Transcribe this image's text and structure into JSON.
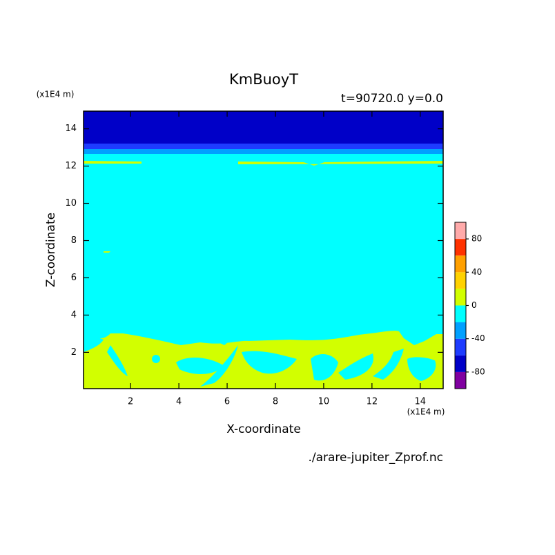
{
  "chart_data": {
    "type": "contour",
    "title": "KmBuoyT",
    "subtitle": "t=90720.0 y=0.0",
    "x_label": "X-coordinate",
    "y_label": "Z-coordinate",
    "x_unit": "(x1E4 m)",
    "y_unit": "(x1E4 m)",
    "source": "./arare-jupiter_Zprof.nc",
    "xlim": [
      0.05,
      14.95
    ],
    "xticks": [
      2,
      4,
      6,
      8,
      10,
      12,
      14
    ],
    "ylim": [
      0.05,
      14.95
    ],
    "yticks": [
      2,
      4,
      6,
      8,
      10,
      12,
      14
    ],
    "levels": [
      -100,
      -80,
      -60,
      -40,
      -20,
      0,
      20,
      40,
      60,
      80,
      100
    ],
    "colors": [
      "#8000a0",
      "#0000c8",
      "#1e3cff",
      "#00a0ff",
      "#00ffff",
      "#d2ff00",
      "#ffd200",
      "#ffa000",
      "#ff3200",
      "#ffaaaa"
    ],
    "colorbar_ticks": [
      -80,
      -40,
      0,
      40,
      80
    ]
  }
}
